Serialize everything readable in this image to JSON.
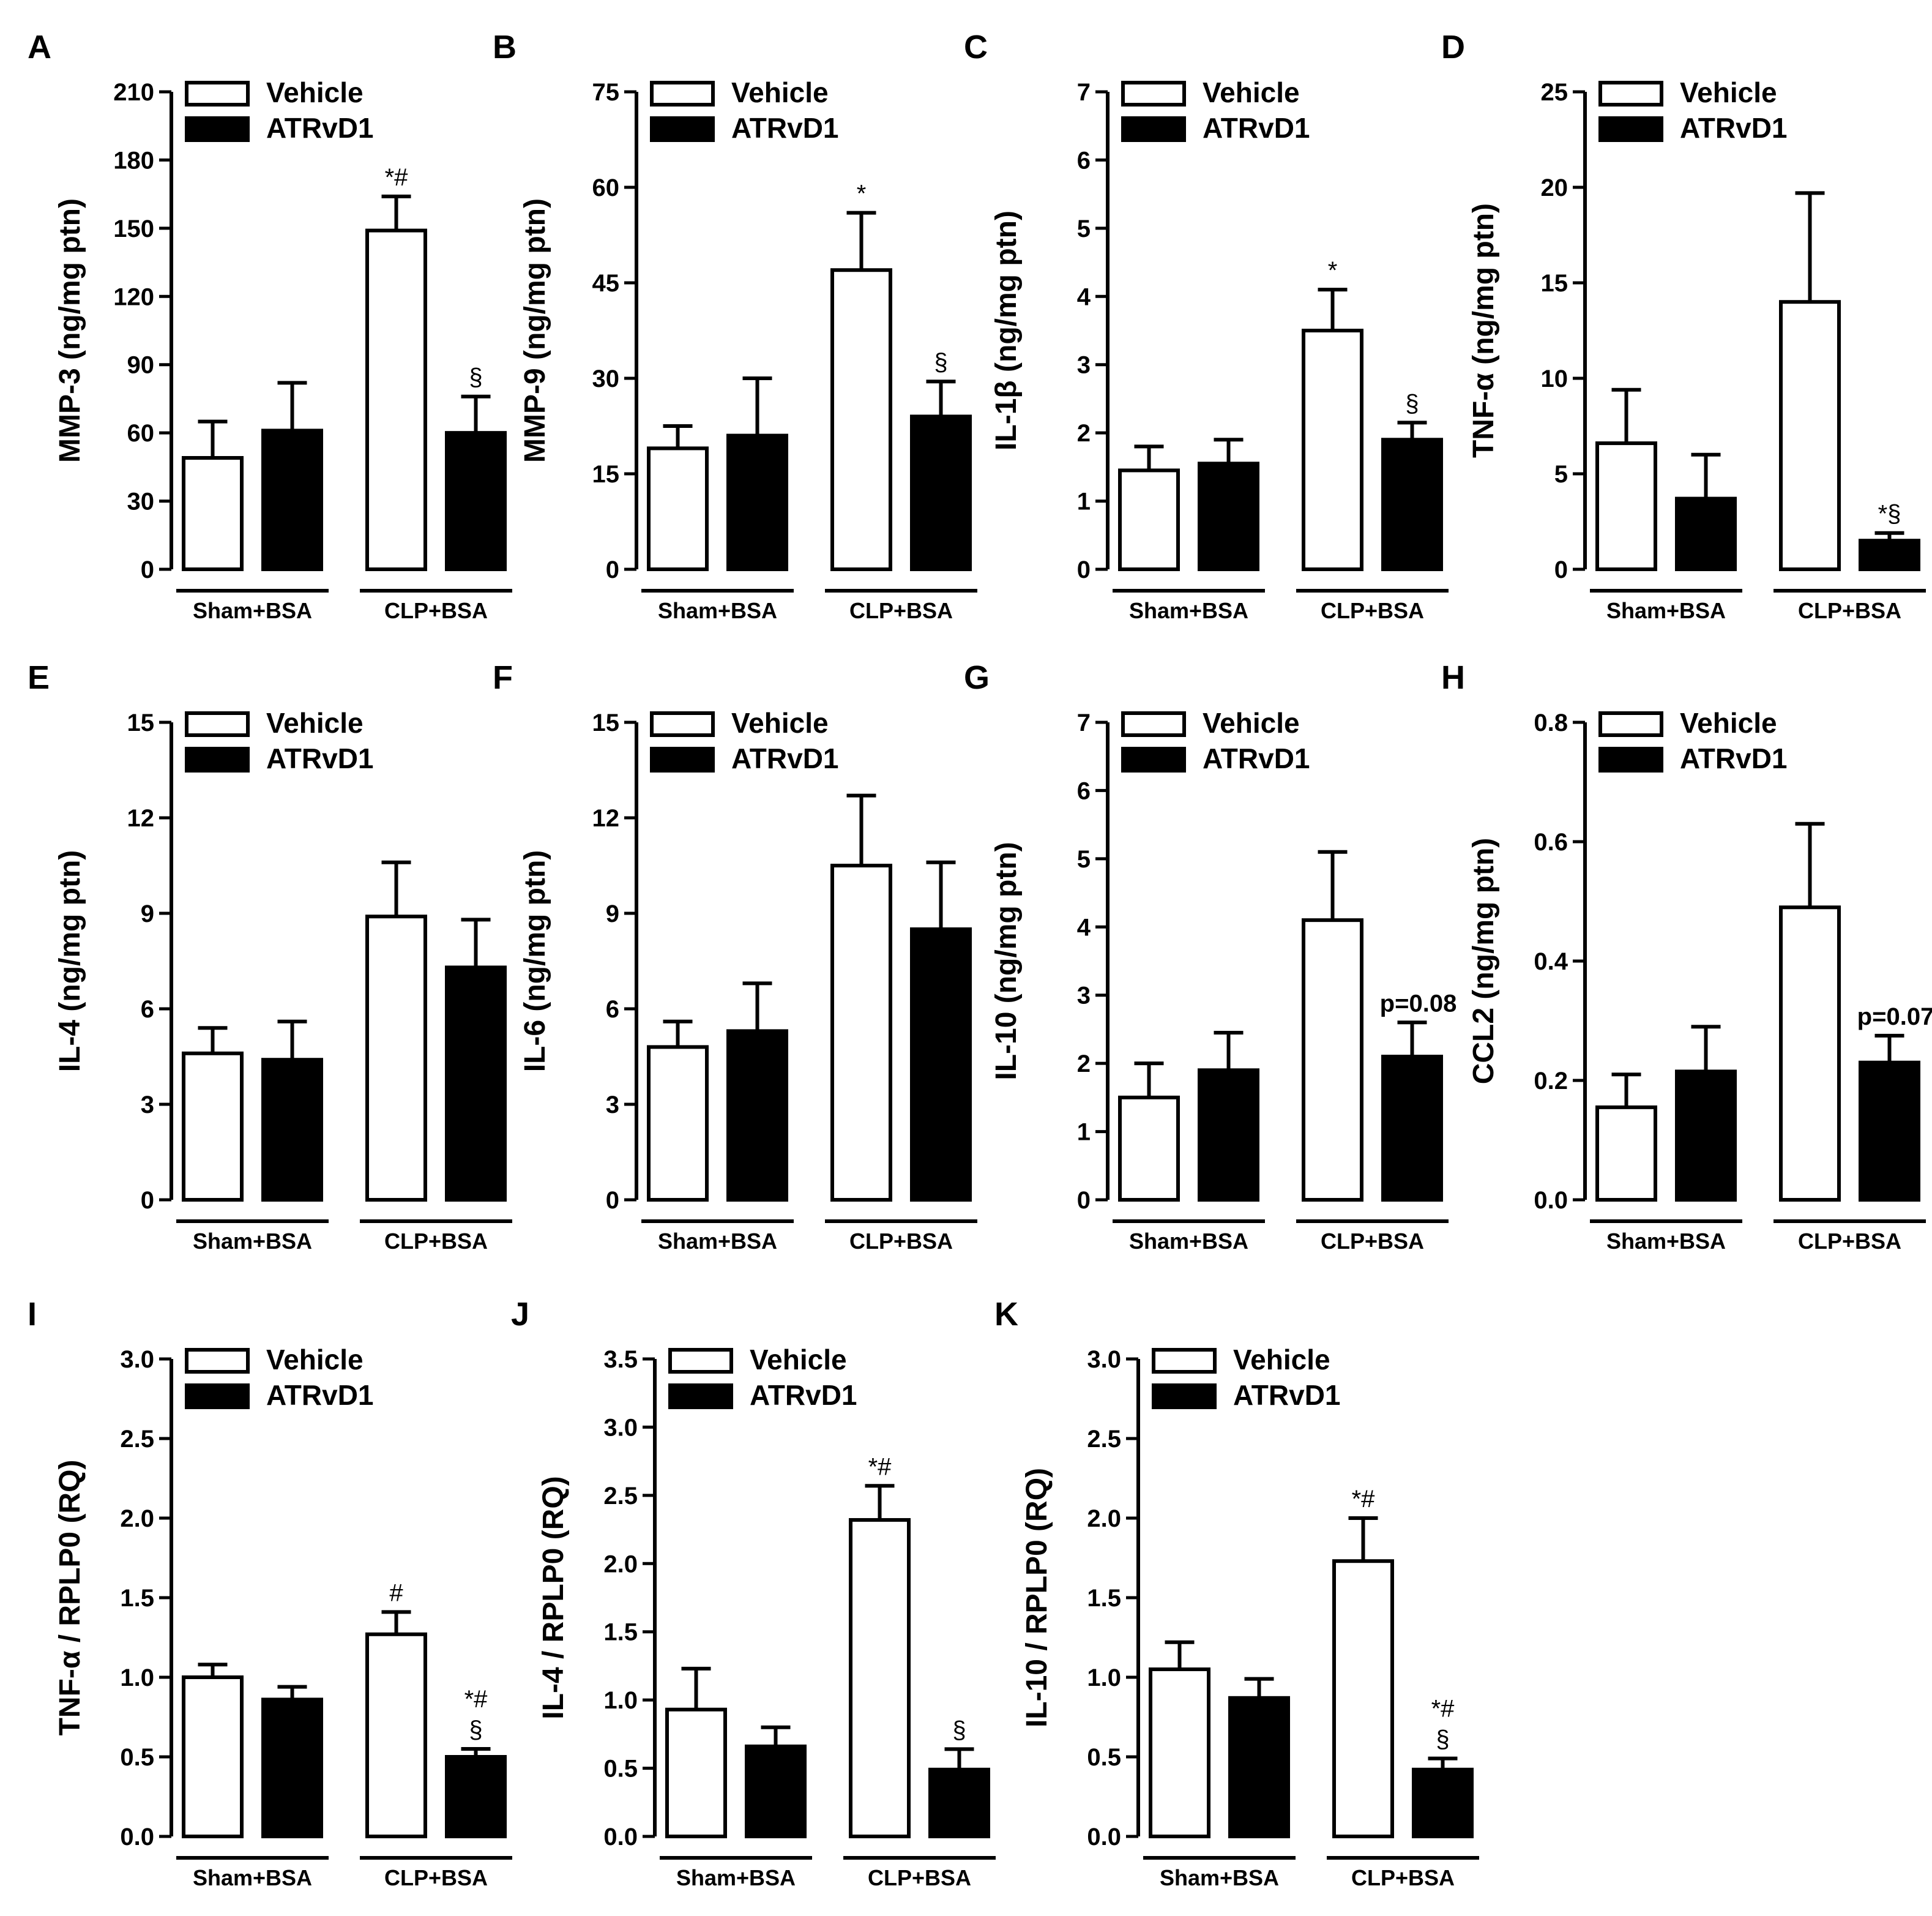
{
  "figure": {
    "legend": {
      "vehicle_label": "Vehicle",
      "atrvd1_label": "ATRvD1"
    },
    "group_labels": [
      "Sham+BSA",
      "CLP+BSA"
    ],
    "colors": {
      "vehicle_fill": "#ffffff",
      "atrvd1_fill": "#000000",
      "stroke": "#000000"
    }
  },
  "chart_data": [
    {
      "panel": "A",
      "type": "bar",
      "ylabel": "MMP-3 (ng/mg ptn)",
      "ylim": [
        0,
        210
      ],
      "yticks": [
        "0",
        "30",
        "60",
        "90",
        "120",
        "150",
        "180",
        "210"
      ],
      "categories": [
        "Sham+BSA",
        "CLP+BSA"
      ],
      "series": [
        {
          "name": "Vehicle",
          "values": [
            49,
            149
          ],
          "errors": [
            16,
            15
          ]
        },
        {
          "name": "ATRvD1",
          "values": [
            61,
            60
          ],
          "errors": [
            21,
            16
          ]
        }
      ],
      "annotations": [
        {
          "series": "Vehicle",
          "category": "CLP+BSA",
          "text": "*#"
        },
        {
          "series": "ATRvD1",
          "category": "CLP+BSA",
          "text": "§"
        }
      ]
    },
    {
      "panel": "B",
      "type": "bar",
      "ylabel": "MMP-9 (ng/mg ptn)",
      "ylim": [
        0,
        75
      ],
      "yticks": [
        "0",
        "15",
        "30",
        "45",
        "60",
        "75"
      ],
      "categories": [
        "Sham+BSA",
        "CLP+BSA"
      ],
      "series": [
        {
          "name": "Vehicle",
          "values": [
            19,
            47
          ],
          "errors": [
            3.5,
            9
          ]
        },
        {
          "name": "ATRvD1",
          "values": [
            21,
            24
          ],
          "errors": [
            9,
            5.5
          ]
        }
      ],
      "annotations": [
        {
          "series": "Vehicle",
          "category": "CLP+BSA",
          "text": "*"
        },
        {
          "series": "ATRvD1",
          "category": "CLP+BSA",
          "text": "§"
        }
      ]
    },
    {
      "panel": "C",
      "type": "bar",
      "ylabel": "IL-1β (ng/mg ptn)",
      "ylim": [
        0,
        7
      ],
      "yticks": [
        "0",
        "1",
        "2",
        "3",
        "4",
        "5",
        "6",
        "7"
      ],
      "categories": [
        "Sham+BSA",
        "CLP+BSA"
      ],
      "series": [
        {
          "name": "Vehicle",
          "values": [
            1.45,
            3.5
          ],
          "errors": [
            0.35,
            0.6
          ]
        },
        {
          "name": "ATRvD1",
          "values": [
            1.55,
            1.9
          ],
          "errors": [
            0.35,
            0.25
          ]
        }
      ],
      "annotations": [
        {
          "series": "Vehicle",
          "category": "CLP+BSA",
          "text": "*"
        },
        {
          "series": "ATRvD1",
          "category": "CLP+BSA",
          "text": "§"
        }
      ]
    },
    {
      "panel": "D",
      "type": "bar",
      "ylabel": "TNF-α (ng/mg ptn)",
      "ylim": [
        0,
        25
      ],
      "yticks": [
        "0",
        "5",
        "10",
        "15",
        "20",
        "25"
      ],
      "categories": [
        "Sham+BSA",
        "CLP+BSA"
      ],
      "series": [
        {
          "name": "Vehicle",
          "values": [
            6.6,
            14
          ],
          "errors": [
            2.8,
            5.7
          ]
        },
        {
          "name": "ATRvD1",
          "values": [
            3.7,
            1.5
          ],
          "errors": [
            2.3,
            0.4
          ]
        }
      ],
      "annotations": [
        {
          "series": "ATRvD1",
          "category": "CLP+BSA",
          "text": "*§"
        }
      ]
    },
    {
      "panel": "E",
      "type": "bar",
      "ylabel": "IL-4 (ng/mg ptn)",
      "ylim": [
        0,
        15
      ],
      "yticks": [
        "0",
        "3",
        "6",
        "9",
        "12",
        "15"
      ],
      "categories": [
        "Sham+BSA",
        "CLP+BSA"
      ],
      "series": [
        {
          "name": "Vehicle",
          "values": [
            4.6,
            8.9
          ],
          "errors": [
            0.8,
            1.7
          ]
        },
        {
          "name": "ATRvD1",
          "values": [
            4.4,
            7.3
          ],
          "errors": [
            1.2,
            1.5
          ]
        }
      ],
      "annotations": []
    },
    {
      "panel": "F",
      "type": "bar",
      "ylabel": "IL-6 (ng/mg ptn)",
      "ylim": [
        0,
        15
      ],
      "yticks": [
        "0",
        "3",
        "6",
        "9",
        "12",
        "15"
      ],
      "categories": [
        "Sham+BSA",
        "CLP+BSA"
      ],
      "series": [
        {
          "name": "Vehicle",
          "values": [
            4.8,
            10.5
          ],
          "errors": [
            0.8,
            2.2
          ]
        },
        {
          "name": "ATRvD1",
          "values": [
            5.3,
            8.5
          ],
          "errors": [
            1.5,
            2.1
          ]
        }
      ],
      "annotations": []
    },
    {
      "panel": "G",
      "type": "bar",
      "ylabel": "IL-10 (ng/mg ptn)",
      "ylim": [
        0,
        7
      ],
      "yticks": [
        "0",
        "1",
        "2",
        "3",
        "4",
        "5",
        "6",
        "7"
      ],
      "categories": [
        "Sham+BSA",
        "CLP+BSA"
      ],
      "series": [
        {
          "name": "Vehicle",
          "values": [
            1.5,
            4.1
          ],
          "errors": [
            0.5,
            1.0
          ]
        },
        {
          "name": "ATRvD1",
          "values": [
            1.9,
            2.1
          ],
          "errors": [
            0.55,
            0.5
          ]
        }
      ],
      "annotations": [
        {
          "series": "ATRvD1",
          "category": "CLP+BSA",
          "text": "p=0.08"
        }
      ]
    },
    {
      "panel": "H",
      "type": "bar",
      "ylabel": "CCL2 (ng/mg ptn)",
      "ylim": [
        0,
        0.8
      ],
      "yticks": [
        "0.0",
        "0.2",
        "0.4",
        "0.6",
        "0.8"
      ],
      "categories": [
        "Sham+BSA",
        "CLP+BSA"
      ],
      "series": [
        {
          "name": "Vehicle",
          "values": [
            0.155,
            0.49
          ],
          "errors": [
            0.055,
            0.14
          ]
        },
        {
          "name": "ATRvD1",
          "values": [
            0.215,
            0.23
          ],
          "errors": [
            0.075,
            0.045
          ]
        }
      ],
      "annotations": [
        {
          "series": "ATRvD1",
          "category": "CLP+BSA",
          "text": "p=0.07"
        }
      ]
    },
    {
      "panel": "I",
      "type": "bar",
      "ylabel": "TNF-α / RPLP0 (RQ)",
      "ylim": [
        0,
        3.0
      ],
      "yticks": [
        "0.0",
        "0.5",
        "1.0",
        "1.5",
        "2.0",
        "2.5",
        "3.0"
      ],
      "categories": [
        "Sham+BSA",
        "CLP+BSA"
      ],
      "series": [
        {
          "name": "Vehicle",
          "values": [
            1.0,
            1.27
          ],
          "errors": [
            0.08,
            0.14
          ]
        },
        {
          "name": "ATRvD1",
          "values": [
            0.86,
            0.5
          ],
          "errors": [
            0.08,
            0.05
          ]
        }
      ],
      "annotations": [
        {
          "series": "Vehicle",
          "category": "CLP+BSA",
          "text": "#"
        },
        {
          "series": "ATRvD1",
          "category": "CLP+BSA",
          "text": "*#"
        },
        {
          "series": "ATRvD1",
          "category": "CLP+BSA",
          "text": "§"
        }
      ]
    },
    {
      "panel": "J",
      "type": "bar",
      "ylabel": "IL-4 / RPLP0 (RQ)",
      "ylim": [
        0,
        3.5
      ],
      "yticks": [
        "0.0",
        "0.5",
        "1.0",
        "1.5",
        "2.0",
        "2.5",
        "3.0",
        "3.5"
      ],
      "categories": [
        "Sham+BSA",
        "CLP+BSA"
      ],
      "series": [
        {
          "name": "Vehicle",
          "values": [
            0.93,
            2.32
          ],
          "errors": [
            0.3,
            0.25
          ]
        },
        {
          "name": "ATRvD1",
          "values": [
            0.66,
            0.49
          ],
          "errors": [
            0.14,
            0.15
          ]
        }
      ],
      "annotations": [
        {
          "series": "Vehicle",
          "category": "CLP+BSA",
          "text": "*#"
        },
        {
          "series": "ATRvD1",
          "category": "CLP+BSA",
          "text": "§"
        }
      ]
    },
    {
      "panel": "K",
      "type": "bar",
      "ylabel": "IL-10 / RPLP0 (RQ)",
      "ylim": [
        0,
        3.0
      ],
      "yticks": [
        "0.0",
        "0.5",
        "1.0",
        "1.5",
        "2.0",
        "2.5",
        "3.0"
      ],
      "categories": [
        "Sham+BSA",
        "CLP+BSA"
      ],
      "series": [
        {
          "name": "Vehicle",
          "values": [
            1.05,
            1.73
          ],
          "errors": [
            0.17,
            0.27
          ]
        },
        {
          "name": "ATRvD1",
          "values": [
            0.87,
            0.42
          ],
          "errors": [
            0.12,
            0.07
          ]
        }
      ],
      "annotations": [
        {
          "series": "Vehicle",
          "category": "CLP+BSA",
          "text": "*#"
        },
        {
          "series": "ATRvD1",
          "category": "CLP+BSA",
          "text": "*#"
        },
        {
          "series": "ATRvD1",
          "category": "CLP+BSA",
          "text": "§"
        }
      ]
    }
  ]
}
